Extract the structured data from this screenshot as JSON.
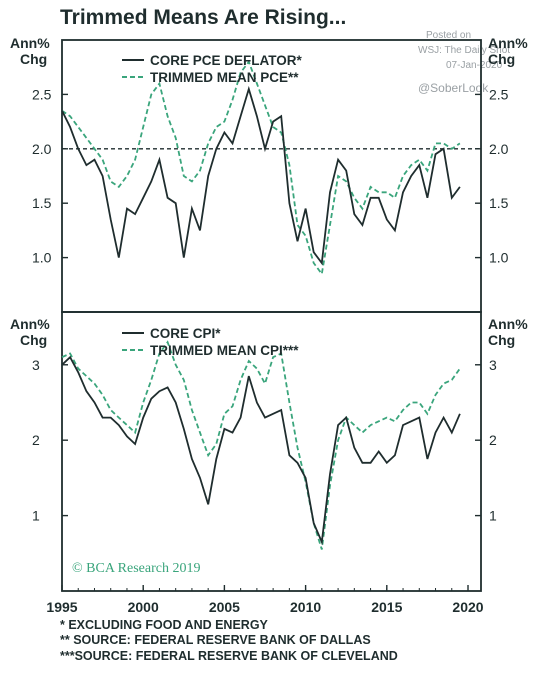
{
  "title": "Trimmed Means Are Rising...",
  "watermark": {
    "posted": "Posted on",
    "source": "WSJ: The Daily Shot",
    "date": "07-Jan-2020",
    "handle": "@SoberLook"
  },
  "credit": "© BCA Research 2019",
  "footnotes": [
    "*   EXCLUDING FOOD AND ENERGY",
    "** SOURCE: FEDERAL RESERVE BANK OF DALLAS",
    "***SOURCE: FEDERAL RESERVE BANK OF CLEVELAND"
  ],
  "colors": {
    "core": "#1f2d2e",
    "trimmed": "#3aa57c",
    "axis": "#1f2d2e"
  },
  "x_ticks": [
    "1995",
    "2000",
    "2005",
    "2010",
    "2015",
    "2020"
  ],
  "chart_data": [
    {
      "type": "line",
      "unit_label": [
        "Ann%",
        "Chg"
      ],
      "xlim": [
        1995,
        2020.8
      ],
      "ylim": [
        0.5,
        3.0
      ],
      "yticks": [
        "1.0",
        "1.5",
        "2.0",
        "2.5"
      ],
      "ytick_values": [
        1.0,
        1.5,
        2.0,
        2.5
      ],
      "reference_line": 2.0,
      "series": [
        {
          "name": "CORE PCE DEFLATOR*",
          "style": "solid",
          "x": [
            1995.0,
            1995.5,
            1996.0,
            1996.5,
            1997.0,
            1997.5,
            1998.0,
            1998.5,
            1999.0,
            1999.5,
            2000.0,
            2000.5,
            2001.0,
            2001.5,
            2002.0,
            2002.5,
            2003.0,
            2003.5,
            2004.0,
            2004.5,
            2005.0,
            2005.5,
            2006.0,
            2006.5,
            2007.0,
            2007.5,
            2008.0,
            2008.5,
            2009.0,
            2009.5,
            2010.0,
            2010.5,
            2011.0,
            2011.5,
            2012.0,
            2012.5,
            2013.0,
            2013.5,
            2014.0,
            2014.5,
            2015.0,
            2015.5,
            2016.0,
            2016.5,
            2017.0,
            2017.5,
            2018.0,
            2018.5,
            2019.0,
            2019.5
          ],
          "values": [
            2.35,
            2.2,
            2.0,
            1.85,
            1.9,
            1.75,
            1.35,
            1.0,
            1.45,
            1.4,
            1.55,
            1.7,
            1.9,
            1.55,
            1.5,
            1.0,
            1.45,
            1.25,
            1.75,
            2.0,
            2.15,
            2.05,
            2.3,
            2.55,
            2.3,
            2.0,
            2.25,
            2.3,
            1.5,
            1.15,
            1.45,
            1.05,
            0.95,
            1.6,
            1.9,
            1.8,
            1.4,
            1.3,
            1.55,
            1.55,
            1.35,
            1.25,
            1.6,
            1.75,
            1.85,
            1.55,
            1.95,
            2.0,
            1.55,
            1.65
          ]
        },
        {
          "name": "TRIMMED MEAN PCE**",
          "style": "dashed",
          "x": [
            1995.0,
            1995.5,
            1996.0,
            1996.5,
            1997.0,
            1997.5,
            1998.0,
            1998.5,
            1999.0,
            1999.5,
            2000.0,
            2000.5,
            2001.0,
            2001.5,
            2002.0,
            2002.5,
            2003.0,
            2003.5,
            2004.0,
            2004.5,
            2005.0,
            2005.5,
            2006.0,
            2006.5,
            2007.0,
            2007.5,
            2008.0,
            2008.5,
            2009.0,
            2009.5,
            2010.0,
            2010.5,
            2011.0,
            2011.5,
            2012.0,
            2012.5,
            2013.0,
            2013.5,
            2014.0,
            2014.5,
            2015.0,
            2015.5,
            2016.0,
            2016.5,
            2017.0,
            2017.5,
            2018.0,
            2018.5,
            2019.0,
            2019.5
          ],
          "values": [
            2.35,
            2.3,
            2.2,
            2.1,
            2.0,
            1.9,
            1.7,
            1.65,
            1.75,
            1.9,
            2.2,
            2.5,
            2.6,
            2.3,
            2.1,
            1.75,
            1.7,
            1.8,
            2.05,
            2.2,
            2.25,
            2.45,
            2.7,
            2.8,
            2.6,
            2.4,
            2.2,
            2.15,
            1.85,
            1.3,
            1.2,
            0.95,
            0.85,
            1.3,
            1.75,
            1.7,
            1.55,
            1.45,
            1.65,
            1.6,
            1.6,
            1.55,
            1.75,
            1.85,
            1.9,
            1.8,
            2.05,
            2.05,
            2.0,
            2.05
          ]
        }
      ]
    },
    {
      "type": "line",
      "unit_label": [
        "Ann%",
        "Chg"
      ],
      "xlim": [
        1995,
        2020.8
      ],
      "ylim": [
        0.0,
        3.7
      ],
      "yticks": [
        "1",
        "2",
        "3"
      ],
      "ytick_values": [
        1,
        2,
        3
      ],
      "series": [
        {
          "name": "CORE CPI*",
          "style": "solid",
          "x": [
            1995.0,
            1995.5,
            1996.0,
            1996.5,
            1997.0,
            1997.5,
            1998.0,
            1998.5,
            1999.0,
            1999.5,
            2000.0,
            2000.5,
            2001.0,
            2001.5,
            2002.0,
            2002.5,
            2003.0,
            2003.5,
            2004.0,
            2004.5,
            2005.0,
            2005.5,
            2006.0,
            2006.5,
            2007.0,
            2007.5,
            2008.0,
            2008.5,
            2009.0,
            2009.5,
            2010.0,
            2010.5,
            2011.0,
            2011.5,
            2012.0,
            2012.5,
            2013.0,
            2013.5,
            2014.0,
            2014.5,
            2015.0,
            2015.5,
            2016.0,
            2016.5,
            2017.0,
            2017.5,
            2018.0,
            2018.5,
            2019.0,
            2019.5
          ],
          "values": [
            3.0,
            3.1,
            2.9,
            2.65,
            2.5,
            2.3,
            2.3,
            2.2,
            2.05,
            1.95,
            2.3,
            2.55,
            2.65,
            2.7,
            2.5,
            2.15,
            1.75,
            1.5,
            1.15,
            1.75,
            2.15,
            2.1,
            2.3,
            2.85,
            2.5,
            2.3,
            2.35,
            2.4,
            1.8,
            1.7,
            1.5,
            0.9,
            0.65,
            1.55,
            2.2,
            2.3,
            1.9,
            1.7,
            1.7,
            1.85,
            1.7,
            1.8,
            2.2,
            2.25,
            2.3,
            1.75,
            2.1,
            2.3,
            2.1,
            2.35
          ]
        },
        {
          "name": "TRIMMED MEAN CPI***",
          "style": "dashed",
          "x": [
            1995.0,
            1995.5,
            1996.0,
            1996.5,
            1997.0,
            1997.5,
            1998.0,
            1998.5,
            1999.0,
            1999.5,
            2000.0,
            2000.5,
            2001.0,
            2001.5,
            2002.0,
            2002.5,
            2003.0,
            2003.5,
            2004.0,
            2004.5,
            2005.0,
            2005.5,
            2006.0,
            2006.5,
            2007.0,
            2007.5,
            2008.0,
            2008.5,
            2009.0,
            2009.5,
            2010.0,
            2010.5,
            2011.0,
            2011.5,
            2012.0,
            2012.5,
            2013.0,
            2013.5,
            2014.0,
            2014.5,
            2015.0,
            2015.5,
            2016.0,
            2016.5,
            2017.0,
            2017.5,
            2018.0,
            2018.5,
            2019.0,
            2019.5
          ],
          "values": [
            3.1,
            3.15,
            2.95,
            2.85,
            2.75,
            2.6,
            2.4,
            2.3,
            2.2,
            2.1,
            2.5,
            2.8,
            3.15,
            3.3,
            3.0,
            2.8,
            2.4,
            2.1,
            1.8,
            1.95,
            2.35,
            2.45,
            2.8,
            3.05,
            2.95,
            2.75,
            3.1,
            3.15,
            2.5,
            1.9,
            1.45,
            0.9,
            0.55,
            1.4,
            2.0,
            2.3,
            2.2,
            2.1,
            2.2,
            2.25,
            2.3,
            2.25,
            2.4,
            2.5,
            2.5,
            2.35,
            2.6,
            2.75,
            2.8,
            2.95
          ]
        }
      ]
    }
  ]
}
